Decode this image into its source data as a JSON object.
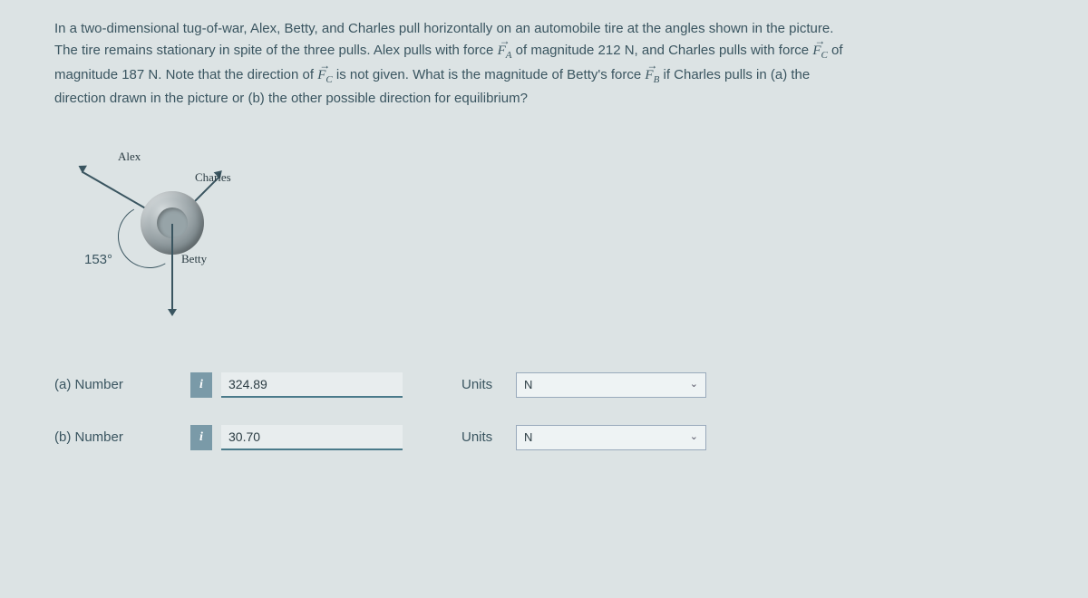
{
  "problem": {
    "line1_a": "In a two-dimensional tug-of-war, Alex, Betty, and Charles pull horizontally on an automobile tire at the angles shown in the picture.",
    "line2_a": "The tire remains stationary in spite of the three pulls. Alex pulls with force ",
    "fa_sym": "F",
    "fa_sub": "A",
    "line2_b": " of magnitude 212 N, and Charles pulls with force ",
    "fc_sym": "F",
    "fc_sub": "C",
    "line2_c": " of",
    "line3_a": "magnitude 187 N. Note that the direction of ",
    "fc2_sym": "F",
    "fc2_sub": "C",
    "line3_b": " is not given. What is the magnitude of Betty's force ",
    "fb_sym": "F",
    "fb_sub": "B",
    "line3_c": " if Charles pulls in (a) the",
    "line4": "direction drawn in the picture or (b) the other possible direction for equilibrium?"
  },
  "diagram": {
    "label_alex": "Alex",
    "label_charles": "Charles",
    "label_betty": "Betty",
    "angle_label": "153°"
  },
  "answers": {
    "a": {
      "label": "(a)   Number",
      "info": "i",
      "value": "324.89",
      "units_label": "Units",
      "units_value": "N"
    },
    "b": {
      "label": "(b)   Number",
      "info": "i",
      "value": "30.70",
      "units_label": "Units",
      "units_value": "N"
    }
  }
}
